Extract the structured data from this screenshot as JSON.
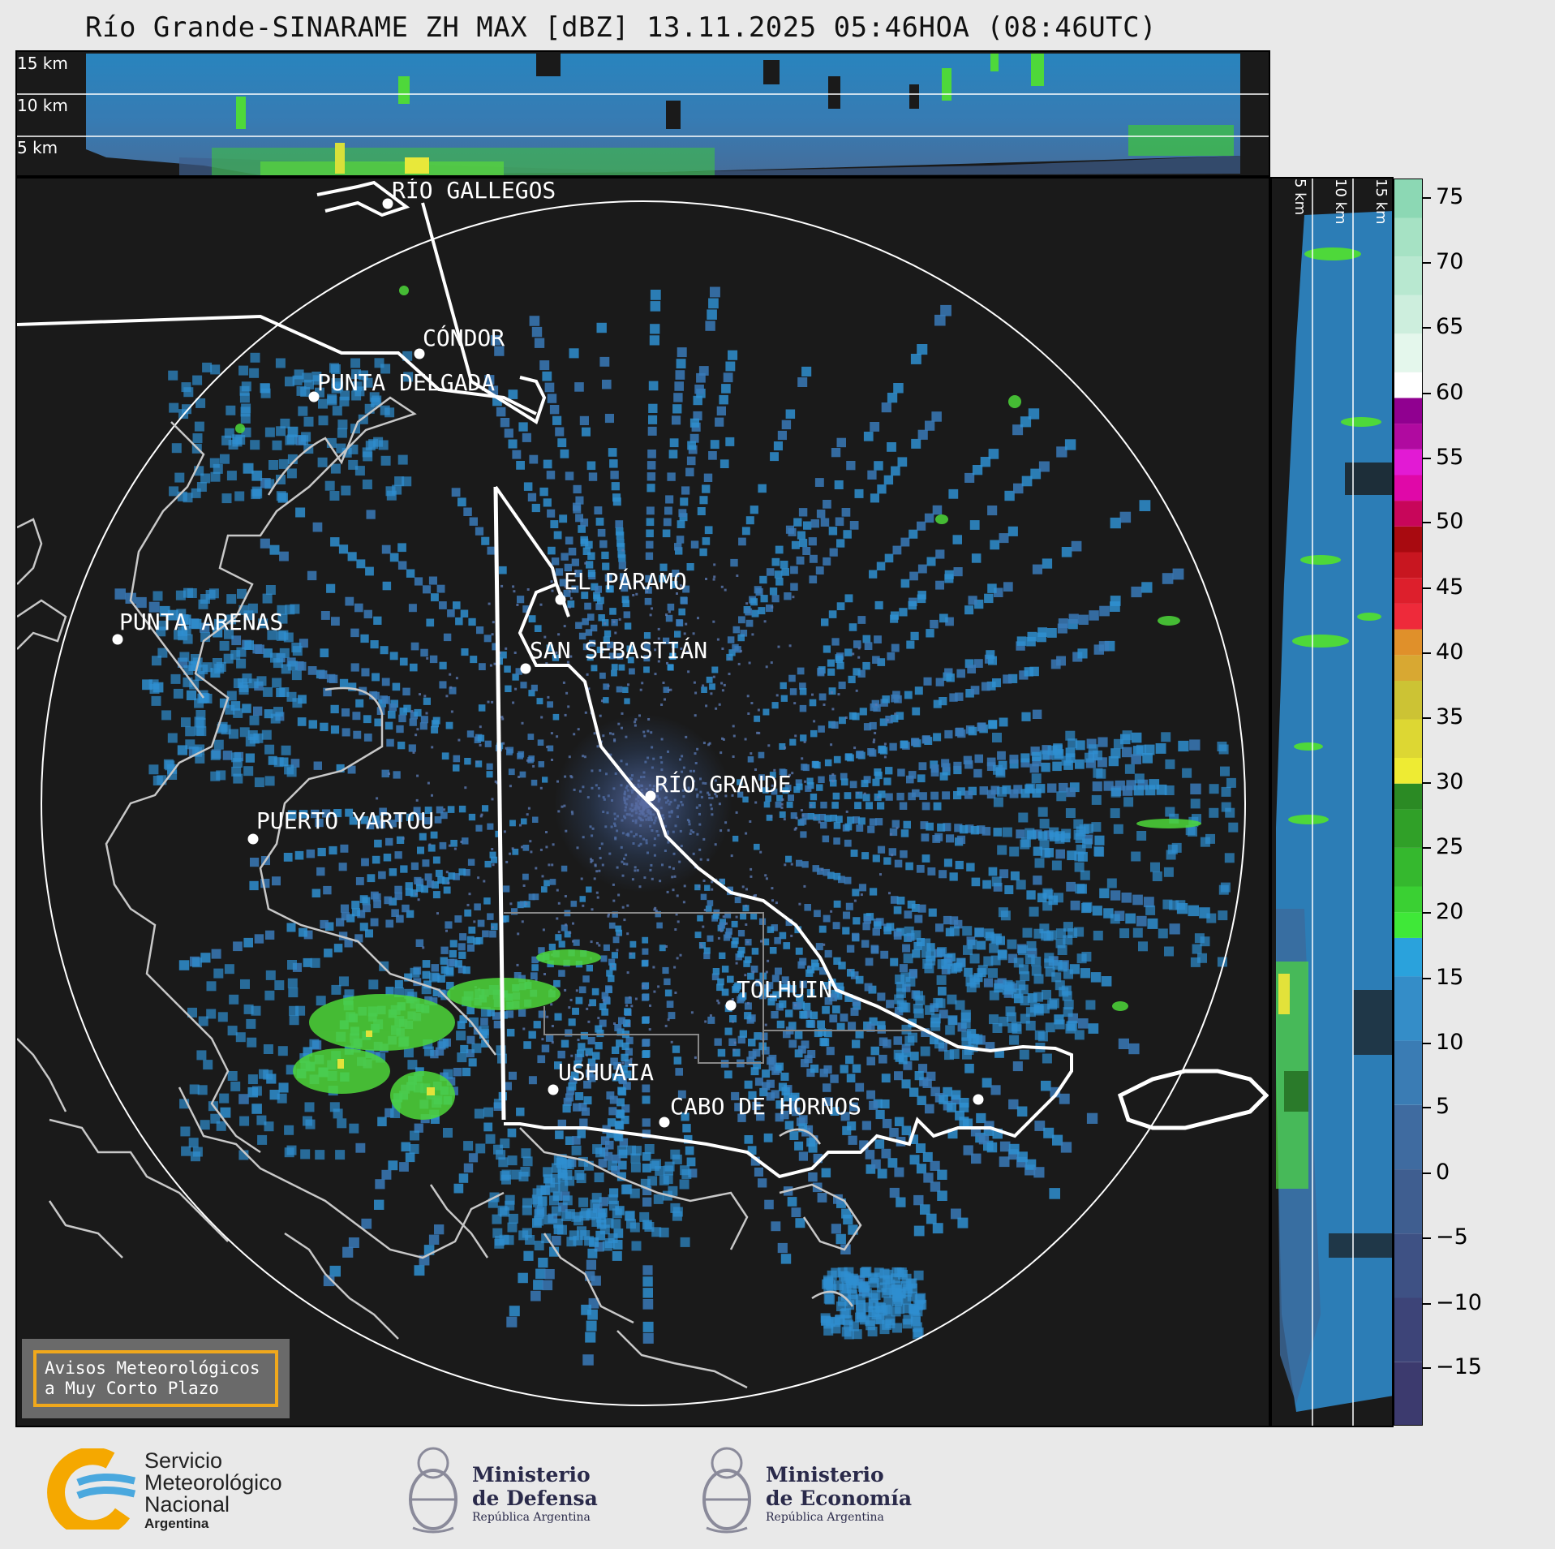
{
  "title": "Río Grande-SINARAME ZH MAX [dBZ] 13.11.2025 05:46HOA (08:46UTC)",
  "top_panel": {
    "height_labels": [
      "15 km",
      "10 km",
      "5 km"
    ]
  },
  "right_panel": {
    "height_labels": [
      "5 km",
      "10 km",
      "15 km"
    ]
  },
  "cities": [
    {
      "name": "RÍO GALLEGOS"
    },
    {
      "name": "CÓNDOR"
    },
    {
      "name": "PUNTA DELGADA"
    },
    {
      "name": "EL PÁRAMO"
    },
    {
      "name": "PUNTA ARENAS"
    },
    {
      "name": "SAN SEBASTIÁN"
    },
    {
      "name": "RÍO GRANDE"
    },
    {
      "name": "PUERTO YARTOU"
    },
    {
      "name": "TOLHUIN"
    },
    {
      "name": "USHUAIA"
    },
    {
      "name": "CABO DE HORNOS"
    }
  ],
  "warning": {
    "line1": "Avisos Meteorológicos",
    "line2": "a Muy Corto Plazo"
  },
  "colorbar": {
    "ticks": [
      "75",
      "70",
      "65",
      "60",
      "55",
      "50",
      "45",
      "40",
      "35",
      "30",
      "25",
      "20",
      "15",
      "10",
      "5",
      "0",
      "−5",
      "−10",
      "−15"
    ],
    "range": [
      -20,
      77
    ]
  },
  "logos": {
    "smn": {
      "line1": "Servicio",
      "line2": "Meteorológico",
      "line3": "Nacional",
      "line4": "Argentina"
    },
    "defensa": {
      "line1": "Ministerio",
      "line2": "de Defensa",
      "line3": "República Argentina"
    },
    "economia": {
      "line1": "Ministerio",
      "line2": "de Economía",
      "line3": "República Argentina"
    }
  },
  "colors": {
    "background": "#1a1a1a",
    "coast": "#cfcfcf",
    "border": "#ffffff",
    "echo_blue": "#2f8fd0",
    "echo_green": "#4ed83a",
    "warning_frame": "#f0a81c"
  }
}
